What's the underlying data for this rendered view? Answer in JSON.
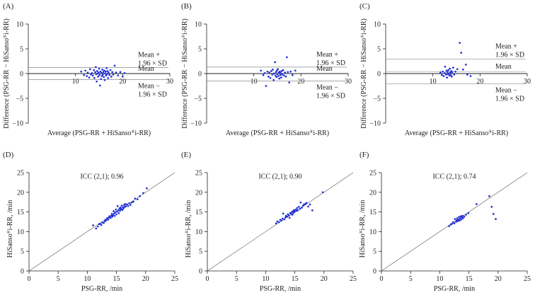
{
  "figure": {
    "ba_xlabel_a": "Average (PSG-RR + HiSanso",
    "ba_xlabel_reg": "®",
    "ba_xlabel_b": "i-RR)",
    "ba_ylabel_a": "Difference (PSG-RR − HiSanso",
    "ba_ylabel_reg": "®",
    "ba_ylabel_b": "i-RR)",
    "sc_xlabel": "PSG-RR, /min",
    "sc_ylabel_a": "HiSanso",
    "sc_ylabel_reg": "®",
    "sc_ylabel_b": "i-RR, /min",
    "upper_l1": "Mean +",
    "upper_l2": "1.96 × SD",
    "mean_label": "Mean",
    "lower_l1": "Mean −",
    "lower_l2": "1.96 × SD",
    "marker_color": "#1f2fd6",
    "axis_color": "#222222"
  },
  "chart_data": [
    {
      "panel": "(A)",
      "type": "scatter",
      "kind": "bland-altman",
      "xlim": [
        0,
        30
      ],
      "ylim": [
        -10,
        10
      ],
      "xticks": [
        10,
        20,
        30
      ],
      "yticks": [
        -10,
        -5,
        0,
        5,
        10
      ],
      "mean": 0.0,
      "upper_loa": 1.2,
      "lower_loa": -1.2,
      "points": [
        [
          11.2,
          0.4
        ],
        [
          11.8,
          -0.3
        ],
        [
          12.1,
          0.6
        ],
        [
          12.4,
          -0.5
        ],
        [
          12.6,
          0.2
        ],
        [
          12.9,
          -0.8
        ],
        [
          13.1,
          0.9
        ],
        [
          13.3,
          -0.2
        ],
        [
          13.5,
          0.1
        ],
        [
          13.7,
          -0.4
        ],
        [
          13.9,
          0.7
        ],
        [
          14.0,
          -0.9
        ],
        [
          14.2,
          0.3
        ],
        [
          14.3,
          1.3
        ],
        [
          14.4,
          -0.1
        ],
        [
          14.5,
          -1.6
        ],
        [
          14.6,
          0.5
        ],
        [
          14.7,
          0.0
        ],
        [
          14.8,
          -0.6
        ],
        [
          14.9,
          0.2
        ],
        [
          15.0,
          1.0
        ],
        [
          15.1,
          -0.3
        ],
        [
          15.2,
          -2.4
        ],
        [
          15.3,
          0.4
        ],
        [
          15.4,
          -1.1
        ],
        [
          15.5,
          0.1
        ],
        [
          15.6,
          -0.5
        ],
        [
          15.7,
          0.8
        ],
        [
          15.8,
          -0.2
        ],
        [
          15.9,
          0.3
        ],
        [
          16.0,
          -0.7
        ],
        [
          16.1,
          0.6
        ],
        [
          16.2,
          -1.3
        ],
        [
          16.3,
          0.0
        ],
        [
          16.4,
          0.4
        ],
        [
          16.5,
          -0.4
        ],
        [
          16.6,
          1.1
        ],
        [
          16.7,
          -0.1
        ],
        [
          16.8,
          0.5
        ],
        [
          16.9,
          -0.9
        ],
        [
          17.0,
          0.2
        ],
        [
          17.2,
          -0.3
        ],
        [
          17.4,
          0.7
        ],
        [
          17.6,
          -0.6
        ],
        [
          17.8,
          0.3
        ],
        [
          18.0,
          -0.2
        ],
        [
          18.3,
          1.6
        ],
        [
          18.6,
          0.2
        ],
        [
          19.0,
          -0.4
        ],
        [
          19.5,
          0.3
        ],
        [
          20.0,
          -0.6
        ],
        [
          20.4,
          0.1
        ]
      ]
    },
    {
      "panel": "(B)",
      "type": "scatter",
      "kind": "bland-altman",
      "xlim": [
        0,
        30
      ],
      "ylim": [
        -10,
        10
      ],
      "xticks": [
        10,
        20,
        30
      ],
      "yticks": [
        -10,
        -5,
        0,
        5,
        10
      ],
      "mean": 0.0,
      "upper_loa": 1.3,
      "lower_loa": -1.5,
      "points": [
        [
          11.5,
          0.6
        ],
        [
          12.0,
          -0.3
        ],
        [
          12.3,
          0.1
        ],
        [
          12.6,
          -2.5
        ],
        [
          12.9,
          0.4
        ],
        [
          13.1,
          -0.6
        ],
        [
          13.3,
          0.2
        ],
        [
          13.5,
          -0.9
        ],
        [
          13.7,
          0.5
        ],
        [
          13.9,
          -0.2
        ],
        [
          14.0,
          0.8
        ],
        [
          14.2,
          -1.3
        ],
        [
          14.3,
          0.0
        ],
        [
          14.5,
          2.3
        ],
        [
          14.6,
          -0.4
        ],
        [
          14.7,
          0.3
        ],
        [
          14.8,
          -0.7
        ],
        [
          14.9,
          0.6
        ],
        [
          15.0,
          -0.1
        ],
        [
          15.1,
          0.9
        ],
        [
          15.2,
          -0.5
        ],
        [
          15.3,
          0.2
        ],
        [
          15.4,
          -1.0
        ],
        [
          15.5,
          0.4
        ],
        [
          15.6,
          -0.3
        ],
        [
          15.7,
          0.1
        ],
        [
          15.8,
          -0.8
        ],
        [
          15.9,
          0.5
        ],
        [
          16.0,
          -0.2
        ],
        [
          16.2,
          0.7
        ],
        [
          16.4,
          -0.4
        ],
        [
          16.6,
          0.2
        ],
        [
          16.8,
          -0.6
        ],
        [
          17.0,
          3.3
        ],
        [
          17.2,
          0.3
        ],
        [
          17.5,
          -1.8
        ],
        [
          17.8,
          0.4
        ],
        [
          18.2,
          -0.3
        ],
        [
          18.8,
          0.6
        ]
      ]
    },
    {
      "panel": "(C)",
      "type": "scatter",
      "kind": "bland-altman",
      "xlim": [
        0,
        30
      ],
      "ylim": [
        -10,
        10
      ],
      "xticks": [
        10,
        20,
        30
      ],
      "yticks": [
        -10,
        -5,
        0,
        5,
        10
      ],
      "mean": 0.4,
      "upper_loa": 2.9,
      "lower_loa": -2.1,
      "points": [
        [
          11.6,
          0.2
        ],
        [
          11.9,
          -0.3
        ],
        [
          12.1,
          0.4
        ],
        [
          12.3,
          -0.5
        ],
        [
          12.5,
          0.1
        ],
        [
          12.6,
          1.4
        ],
        [
          12.8,
          -0.2
        ],
        [
          12.9,
          0.6
        ],
        [
          13.0,
          -0.8
        ],
        [
          13.1,
          0.3
        ],
        [
          13.2,
          -0.1
        ],
        [
          13.3,
          0.7
        ],
        [
          13.4,
          0.0
        ],
        [
          13.5,
          -0.4
        ],
        [
          13.6,
          1.0
        ],
        [
          13.7,
          0.2
        ],
        [
          13.8,
          -0.3
        ],
        [
          13.9,
          0.5
        ],
        [
          14.0,
          -0.6
        ],
        [
          14.1,
          0.3
        ],
        [
          14.3,
          1.2
        ],
        [
          14.5,
          -0.2
        ],
        [
          14.8,
          0.4
        ],
        [
          15.2,
          0.9
        ],
        [
          15.7,
          6.2
        ],
        [
          16.0,
          4.2
        ],
        [
          16.4,
          0.8
        ],
        [
          17.0,
          1.8
        ],
        [
          17.3,
          -0.2
        ],
        [
          18.0,
          -0.5
        ]
      ]
    },
    {
      "panel": "(D)",
      "type": "scatter",
      "kind": "agreement",
      "xlim": [
        0,
        25
      ],
      "ylim": [
        0,
        25
      ],
      "xticks": [
        0,
        5,
        10,
        15,
        20,
        25
      ],
      "yticks": [
        0,
        5,
        10,
        15,
        20,
        25
      ],
      "annotation": "ICC (2,1); 0.96",
      "points": [
        [
          11.0,
          11.6
        ],
        [
          11.5,
          10.8
        ],
        [
          11.8,
          11.3
        ],
        [
          12.0,
          11.9
        ],
        [
          12.2,
          12.0
        ],
        [
          12.4,
          11.7
        ],
        [
          12.6,
          12.3
        ],
        [
          12.8,
          12.2
        ],
        [
          13.0,
          12.6
        ],
        [
          13.1,
          13.0
        ],
        [
          13.3,
          12.9
        ],
        [
          13.4,
          13.4
        ],
        [
          13.6,
          13.1
        ],
        [
          13.7,
          13.6
        ],
        [
          13.8,
          13.9
        ],
        [
          14.0,
          13.5
        ],
        [
          14.1,
          14.0
        ],
        [
          14.2,
          14.5
        ],
        [
          14.3,
          13.8
        ],
        [
          14.4,
          14.2
        ],
        [
          14.5,
          15.2
        ],
        [
          14.6,
          14.6
        ],
        [
          14.7,
          14.0
        ],
        [
          14.8,
          14.9
        ],
        [
          14.9,
          15.6
        ],
        [
          15.0,
          14.4
        ],
        [
          15.1,
          15.1
        ],
        [
          15.2,
          16.5
        ],
        [
          15.3,
          15.4
        ],
        [
          15.4,
          14.7
        ],
        [
          15.5,
          15.9
        ],
        [
          15.6,
          15.3
        ],
        [
          15.7,
          16.1
        ],
        [
          15.8,
          15.7
        ],
        [
          15.9,
          16.6
        ],
        [
          16.0,
          15.5
        ],
        [
          16.1,
          16.2
        ],
        [
          16.2,
          15.9
        ],
        [
          16.3,
          16.8
        ],
        [
          16.4,
          16.3
        ],
        [
          16.5,
          17.0
        ],
        [
          16.6,
          16.4
        ],
        [
          16.8,
          16.9
        ],
        [
          17.0,
          16.5
        ],
        [
          17.2,
          17.2
        ],
        [
          17.4,
          16.8
        ],
        [
          17.6,
          17.4
        ],
        [
          17.9,
          17.6
        ],
        [
          18.2,
          18.4
        ],
        [
          18.6,
          18.2
        ],
        [
          19.0,
          19.0
        ],
        [
          19.6,
          19.8
        ],
        [
          20.2,
          21.0
        ]
      ]
    },
    {
      "panel": "(E)",
      "type": "scatter",
      "kind": "agreement",
      "xlim": [
        0,
        25
      ],
      "ylim": [
        0,
        25
      ],
      "xticks": [
        0,
        5,
        10,
        15,
        20,
        25
      ],
      "yticks": [
        0,
        5,
        10,
        15,
        20,
        25
      ],
      "annotation": "ICC (2,1); 0.90",
      "points": [
        [
          11.8,
          12.1
        ],
        [
          12.0,
          12.6
        ],
        [
          12.3,
          12.4
        ],
        [
          12.5,
          13.0
        ],
        [
          12.7,
          12.8
        ],
        [
          12.9,
          13.3
        ],
        [
          13.0,
          14.6
        ],
        [
          13.2,
          13.1
        ],
        [
          13.4,
          13.6
        ],
        [
          13.5,
          14.0
        ],
        [
          13.7,
          13.8
        ],
        [
          13.8,
          14.4
        ],
        [
          14.0,
          14.1
        ],
        [
          14.1,
          13.5
        ],
        [
          14.2,
          14.7
        ],
        [
          14.4,
          14.5
        ],
        [
          14.5,
          15.0
        ],
        [
          14.6,
          14.3
        ],
        [
          14.7,
          15.2
        ],
        [
          14.8,
          14.8
        ],
        [
          14.9,
          15.5
        ],
        [
          15.0,
          15.1
        ],
        [
          15.2,
          15.6
        ],
        [
          15.3,
          15.3
        ],
        [
          15.4,
          16.0
        ],
        [
          15.5,
          15.4
        ],
        [
          15.7,
          16.3
        ],
        [
          15.9,
          15.8
        ],
        [
          16.0,
          17.4
        ],
        [
          16.2,
          16.1
        ],
        [
          16.4,
          16.6
        ],
        [
          16.6,
          16.9
        ],
        [
          16.8,
          17.0
        ],
        [
          17.0,
          17.3
        ],
        [
          17.3,
          16.4
        ],
        [
          17.6,
          16.9
        ],
        [
          18.0,
          15.4
        ],
        [
          19.8,
          20.0
        ]
      ]
    },
    {
      "panel": "(F)",
      "type": "scatter",
      "kind": "agreement",
      "xlim": [
        0,
        25
      ],
      "ylim": [
        0,
        25
      ],
      "xticks": [
        0,
        5,
        10,
        15,
        20,
        25
      ],
      "yticks": [
        0,
        5,
        10,
        15,
        20,
        25
      ],
      "annotation": "ICC (2,1); 0.74",
      "points": [
        [
          11.6,
          11.4
        ],
        [
          11.9,
          11.8
        ],
        [
          12.1,
          12.0
        ],
        [
          12.3,
          12.4
        ],
        [
          12.5,
          12.1
        ],
        [
          12.6,
          13.2
        ],
        [
          12.8,
          12.5
        ],
        [
          12.9,
          12.9
        ],
        [
          13.0,
          13.4
        ],
        [
          13.1,
          12.7
        ],
        [
          13.2,
          13.0
        ],
        [
          13.3,
          13.7
        ],
        [
          13.4,
          12.8
        ],
        [
          13.5,
          13.3
        ],
        [
          13.6,
          13.9
        ],
        [
          13.7,
          13.1
        ],
        [
          13.8,
          13.6
        ],
        [
          13.9,
          14.0
        ],
        [
          14.0,
          13.4
        ],
        [
          14.2,
          13.8
        ],
        [
          14.5,
          14.3
        ],
        [
          14.9,
          14.7
        ],
        [
          16.3,
          17.0
        ],
        [
          18.5,
          19.0
        ],
        [
          18.9,
          16.3
        ],
        [
          19.2,
          14.5
        ],
        [
          19.6,
          13.2
        ]
      ]
    }
  ]
}
